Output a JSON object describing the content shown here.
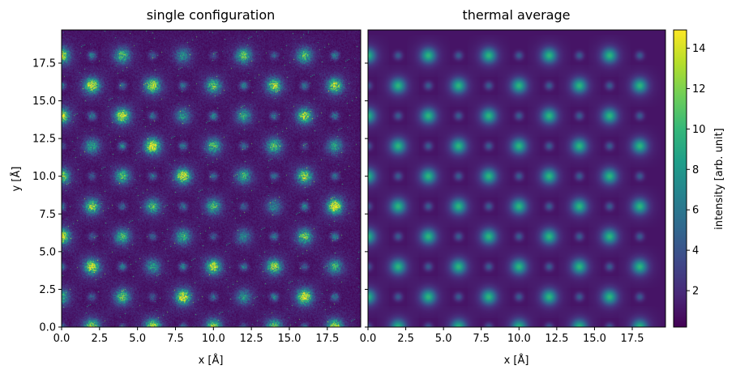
{
  "chart_data": [
    {
      "type": "heatmap",
      "title": "single configuration",
      "xlabel": "x [Å]",
      "ylabel": "y [Å]",
      "xlim": [
        0,
        19.7
      ],
      "ylim": [
        0,
        19.7
      ],
      "xticks": [
        0.0,
        2.5,
        5.0,
        7.5,
        10.0,
        12.5,
        15.0,
        17.5
      ],
      "xtick_labels": [
        "0.0",
        "2.5",
        "5.0",
        "7.5",
        "10.0",
        "12.5",
        "15.0",
        "17.5"
      ],
      "yticks": [
        0.0,
        2.5,
        5.0,
        7.5,
        10.0,
        12.5,
        15.0,
        17.5
      ],
      "ytick_labels": [
        "0.0",
        "2.5",
        "5.0",
        "7.5",
        "10.0",
        "12.5",
        "15.0",
        "17.5"
      ],
      "lattice": {
        "x_positions": [
          0,
          2,
          4,
          6,
          8,
          10,
          12,
          14,
          16,
          18
        ],
        "y_positions": [
          0,
          2,
          4,
          6,
          8,
          10,
          12,
          14,
          16,
          18
        ],
        "period": 2.0,
        "strong_site_peak": 9,
        "weak_site_peak": 4.5,
        "background": 1.0,
        "noisy": true
      }
    },
    {
      "type": "heatmap",
      "title": "thermal average",
      "xlabel": "x [Å]",
      "ylabel": "",
      "xlim": [
        0,
        19.7
      ],
      "ylim": [
        0,
        19.7
      ],
      "xticks": [
        0.0,
        2.5,
        5.0,
        7.5,
        10.0,
        12.5,
        15.0,
        17.5
      ],
      "xtick_labels": [
        "0.0",
        "2.5",
        "5.0",
        "7.5",
        "10.0",
        "12.5",
        "15.0",
        "17.5"
      ],
      "lattice": {
        "x_positions": [
          0,
          2,
          4,
          6,
          8,
          10,
          12,
          14,
          16,
          18
        ],
        "y_positions": [
          0,
          2,
          4,
          6,
          8,
          10,
          12,
          14,
          16,
          18
        ],
        "period": 2.0,
        "strong_site_peak": 7.5,
        "weak_site_peak": 3.5,
        "background": 1.0,
        "noisy": false
      }
    }
  ],
  "colorbar": {
    "label": "intensity [arb. unit]",
    "range": [
      0.2,
      14.9
    ],
    "ticks": [
      2,
      4,
      6,
      8,
      10,
      12,
      14
    ],
    "tick_labels": [
      "2",
      "4",
      "6",
      "8",
      "10",
      "12",
      "14"
    ],
    "colormap": "viridis"
  },
  "colors": {
    "viridis": [
      "#440154",
      "#482878",
      "#3e4989",
      "#31688e",
      "#26828e",
      "#1f9e89",
      "#35b779",
      "#6ece58",
      "#b5de2b",
      "#fde725"
    ]
  }
}
